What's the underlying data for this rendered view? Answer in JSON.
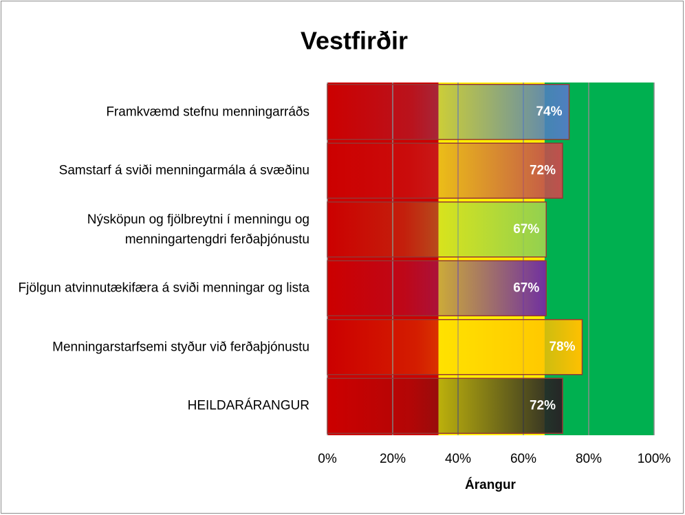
{
  "chart_data": {
    "type": "bar",
    "orientation": "horizontal",
    "title": "Vestfirðir",
    "x_label": "Árangur",
    "categories": [
      "Framkvæmd stefnu menningarráðs",
      "Samstarf á sviði menningarmála á svæðinu",
      "Nýsköpun og fjölbreytni í menningu og menningartengdri ferðaþjónustu",
      "Fjölgun atvinnutækifæra á sviði menningar og lista",
      "Menningarstarfsemi styður við ferðaþjónustu",
      "HEILDARÁRANGUR"
    ],
    "values": [
      74,
      72,
      67,
      67,
      78,
      72
    ],
    "value_labels": [
      "74%",
      "72%",
      "67%",
      "67%",
      "78%",
      "72%"
    ],
    "colors": [
      "#4f7fc0",
      "#c0504d",
      "#92d050",
      "#7030a0",
      "#ffc000",
      "#262626"
    ],
    "bands": [
      {
        "from": 0,
        "to": 34,
        "color": "#cc0000"
      },
      {
        "from": 34,
        "to": 66.5,
        "color": "#ffee00"
      },
      {
        "from": 66.5,
        "to": 100,
        "color": "#00b050"
      }
    ],
    "xlim": [
      0,
      100
    ],
    "xticks": [
      {
        "value": 0,
        "label": "0%"
      },
      {
        "value": 20,
        "label": "20%"
      },
      {
        "value": 40,
        "label": "40%"
      },
      {
        "value": 60,
        "label": "60%"
      },
      {
        "value": 80,
        "label": "80%"
      },
      {
        "value": 100,
        "label": "100%"
      }
    ],
    "grid": true
  }
}
